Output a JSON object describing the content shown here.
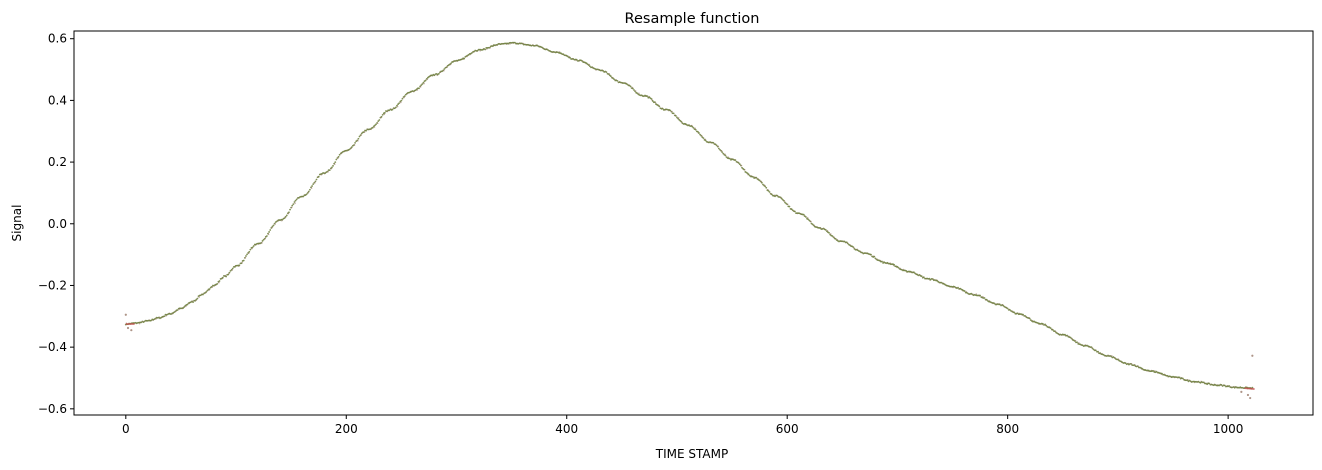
{
  "chart_data": {
    "type": "scatter",
    "title": "Resample function",
    "xlabel": "TIME STAMP",
    "ylabel": "Signal",
    "xlim": [
      -47,
      1077
    ],
    "ylim": [
      -0.62,
      0.625
    ],
    "grid": false,
    "x_ticks": [
      0,
      200,
      400,
      600,
      800,
      1000
    ],
    "x_tick_labels": [
      "0",
      "200",
      "400",
      "600",
      "800",
      "1000"
    ],
    "y_ticks": [
      -0.6,
      -0.4,
      -0.2,
      0.0,
      0.2,
      0.4,
      0.6
    ],
    "y_tick_labels": [
      "−0.6",
      "−0.4",
      "−0.2",
      "0.0",
      "0.2",
      "0.4",
      "0.6"
    ],
    "colors": {
      "series_a": "#6b7d3a",
      "series_b": "#9a7a6a",
      "series_c": "#c0504d"
    },
    "series": [
      {
        "x": [
          0,
          10,
          20,
          30,
          40,
          50,
          60,
          70,
          80,
          90,
          100,
          120,
          140,
          160,
          180,
          200,
          220,
          240,
          260,
          280,
          300,
          320,
          340,
          352,
          370,
          390,
          410,
          430,
          450,
          470,
          490,
          510,
          530,
          550,
          570,
          590,
          610,
          630,
          650,
          670,
          690,
          710,
          730,
          750,
          770,
          790,
          810,
          830,
          850,
          870,
          890,
          910,
          930,
          950,
          970,
          990,
          1010,
          1022
        ],
        "y": [
          -0.325,
          -0.322,
          -0.315,
          -0.305,
          -0.292,
          -0.275,
          -0.253,
          -0.228,
          -0.2,
          -0.17,
          -0.137,
          -0.065,
          0.012,
          0.09,
          0.165,
          0.237,
          0.305,
          0.37,
          0.43,
          0.483,
          0.528,
          0.563,
          0.582,
          0.586,
          0.578,
          0.557,
          0.53,
          0.498,
          0.458,
          0.415,
          0.37,
          0.32,
          0.265,
          0.208,
          0.15,
          0.09,
          0.035,
          -0.015,
          -0.058,
          -0.095,
          -0.127,
          -0.155,
          -0.18,
          -0.205,
          -0.23,
          -0.26,
          -0.292,
          -0.325,
          -0.36,
          -0.395,
          -0.428,
          -0.455,
          -0.478,
          -0.497,
          -0.512,
          -0.523,
          -0.531,
          -0.533
        ]
      }
    ],
    "outliers": [
      {
        "x": 0,
        "y": -0.295
      },
      {
        "x": 2,
        "y": -0.338
      },
      {
        "x": 5,
        "y": -0.345
      },
      {
        "x": 1022,
        "y": -0.428
      },
      {
        "x": 1018,
        "y": -0.555
      },
      {
        "x": 1020,
        "y": -0.565
      },
      {
        "x": 1012,
        "y": -0.545
      }
    ],
    "red_segments": [
      {
        "x": [
          0,
          8
        ],
        "y": [
          -0.325,
          -0.325
        ]
      },
      {
        "x": [
          1015,
          1024
        ],
        "y": [
          -0.533,
          -0.536
        ]
      }
    ]
  }
}
